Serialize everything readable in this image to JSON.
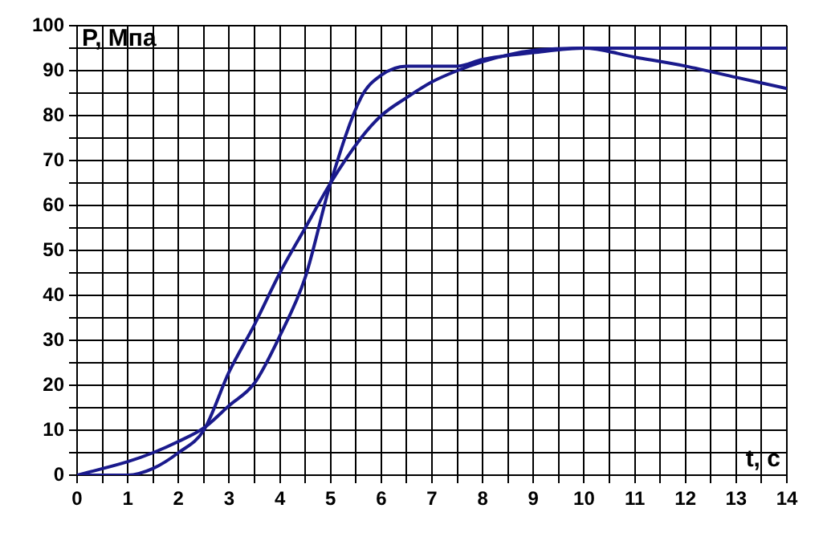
{
  "chart_data": {
    "type": "line",
    "xlabel": "t, c",
    "ylabel": "P, Мпа",
    "xlim": [
      0,
      14
    ],
    "ylim": [
      0,
      100
    ],
    "xticks": [
      0,
      {
        "value": 0.5,
        "label": null
      },
      1,
      {
        "value": 1.5,
        "label": null
      },
      2,
      {
        "value": 2.5,
        "label": null
      },
      3,
      {
        "value": 3.5,
        "label": null
      },
      4,
      {
        "value": 4.5,
        "label": null
      },
      5,
      {
        "value": 5.5,
        "label": null
      },
      6,
      {
        "value": 6.5,
        "label": null
      },
      7,
      {
        "value": 7.5,
        "label": null
      },
      8,
      {
        "value": 8.5,
        "label": null
      },
      9,
      {
        "value": 9.5,
        "label": null
      },
      10,
      {
        "value": 10.5,
        "label": null
      },
      11,
      {
        "value": 11.5,
        "label": null
      },
      12,
      {
        "value": 12.5,
        "label": null
      },
      13,
      {
        "value": 13.5,
        "label": null
      },
      14
    ],
    "yticks": [
      0,
      {
        "value": 5,
        "label": null
      },
      10,
      {
        "value": 15,
        "label": null
      },
      20,
      {
        "value": 25,
        "label": null
      },
      30,
      {
        "value": 35,
        "label": null
      },
      40,
      {
        "value": 45,
        "label": null
      },
      50,
      {
        "value": 55,
        "label": null
      },
      60,
      {
        "value": 65,
        "label": null
      },
      70,
      {
        "value": 75,
        "label": null
      },
      80,
      {
        "value": 85,
        "label": null
      },
      90,
      {
        "value": 95,
        "label": null
      },
      100
    ],
    "grid": true,
    "legend": false,
    "marker": "none",
    "line_style": "solid",
    "series": [
      {
        "color": "#1a1a8c",
        "x": [
          0,
          1,
          1.5,
          2,
          2.5,
          3,
          3.5,
          4,
          4.5,
          5,
          5.6,
          6,
          6.5,
          7,
          7.5,
          8,
          8.5,
          9,
          10,
          11,
          12,
          13,
          14
        ],
        "values": [
          0,
          0,
          1.5,
          5,
          10,
          23,
          33.5,
          45,
          55,
          65,
          75,
          80,
          84,
          87.5,
          90,
          92,
          93.5,
          94.5,
          95,
          93,
          91,
          88.5,
          86
        ]
      },
      {
        "color": "#1a1a8c",
        "x": [
          0,
          1,
          1.5,
          2,
          2.5,
          3,
          3.5,
          4,
          4.5,
          5,
          5.6,
          6,
          6.5,
          7,
          7.5,
          8,
          9,
          10,
          11,
          12,
          13,
          14
        ],
        "values": [
          0,
          3,
          5,
          7.5,
          10.5,
          15.5,
          20.5,
          31,
          44,
          65,
          84,
          89,
          91,
          91,
          91,
          92.5,
          94,
          95,
          95,
          95,
          95,
          95
        ]
      }
    ]
  }
}
